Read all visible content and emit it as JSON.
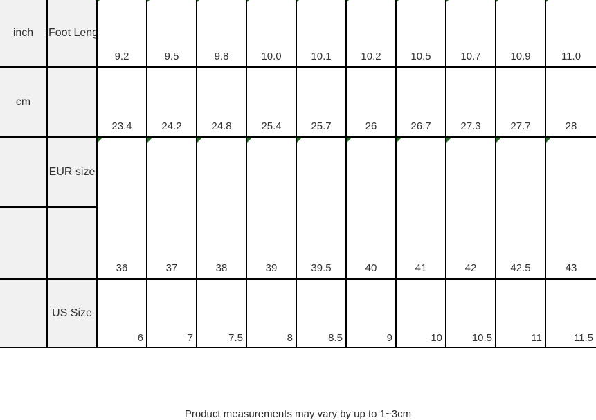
{
  "chart_data": {
    "type": "table",
    "columns_count": 10,
    "rows": [
      {
        "unit_label": "inch",
        "measure_label": "Foot Length",
        "values": [
          "9.2",
          "9.5",
          "9.8",
          "10.0",
          "10.1",
          "10.2",
          "10.5",
          "10.7",
          "10.9",
          "11.0"
        ]
      },
      {
        "unit_label": "cm",
        "measure_label": "",
        "values": [
          "23.4",
          "24.2",
          "24.8",
          "25.4",
          "25.7",
          "26",
          "26.7",
          "27.3",
          "27.7",
          "28"
        ]
      },
      {
        "unit_label": "",
        "measure_label": "EUR size",
        "values": [
          "36",
          "37",
          "38",
          "39",
          "39.5",
          "40",
          "41",
          "42",
          "42.5",
          "43"
        ]
      },
      {
        "unit_label": "",
        "measure_label": "US Size",
        "values": [
          "6",
          "7",
          "7.5",
          "8",
          "8.5",
          "9",
          "10",
          "10.5",
          "11",
          "11.5"
        ]
      }
    ]
  },
  "footnote": "Product measurements may vary by up to 1~3cm",
  "colors": {
    "header_bg": "#f1f1f1",
    "grid_line": "#000000",
    "flag_triangle": "#1e6b21",
    "text": "#333333"
  }
}
